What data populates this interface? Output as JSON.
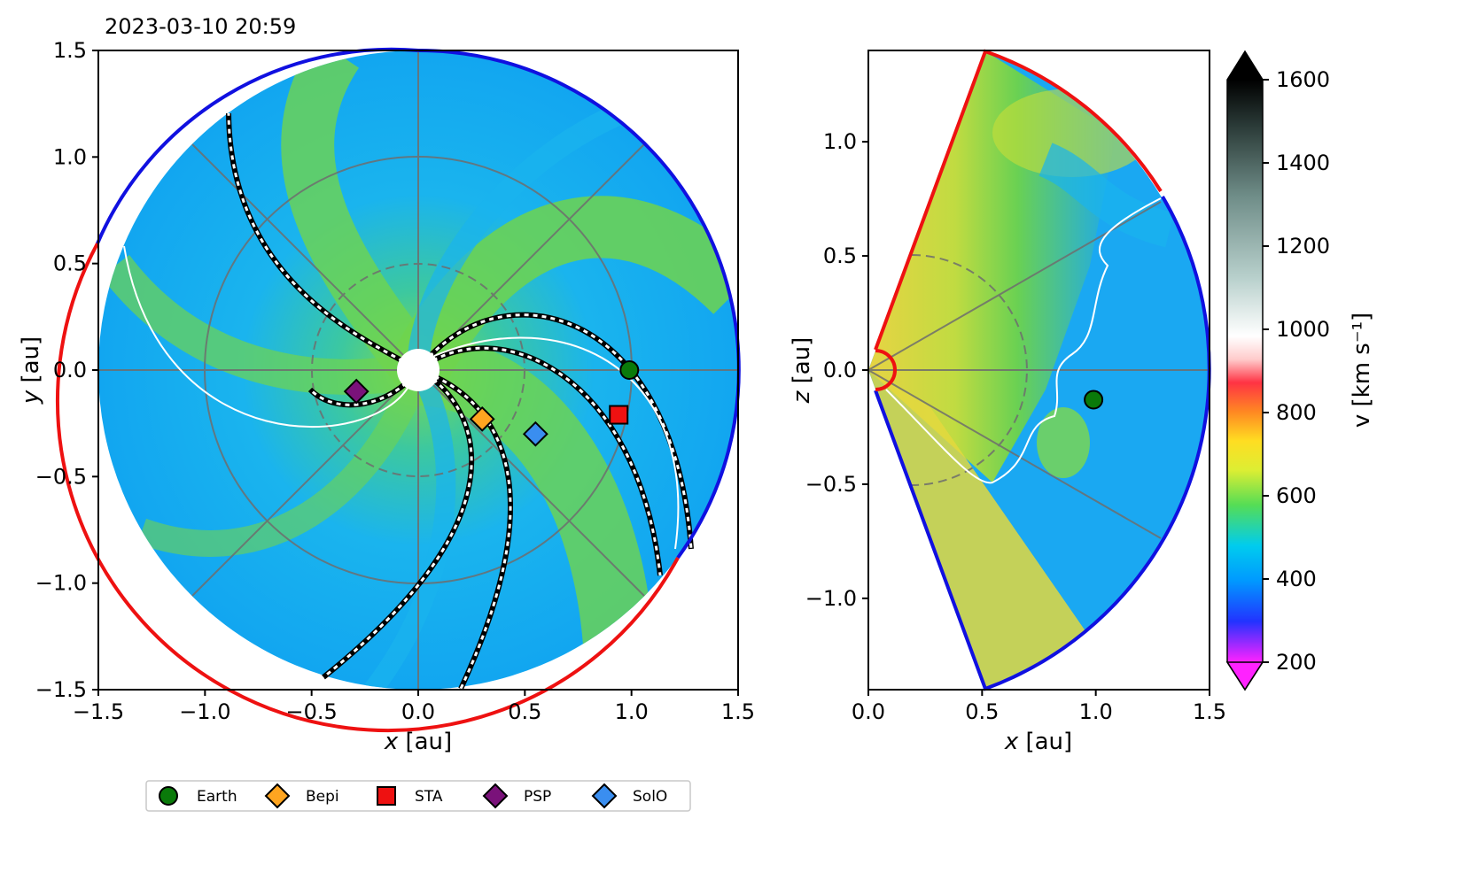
{
  "chart_data": [
    {
      "type": "heatmap",
      "view": "ecliptic plane",
      "timestamp": "2023-03-10 20:59",
      "xlabel_var": "x",
      "xlabel_unit": " [au]",
      "ylabel_var": "y",
      "ylabel_unit": " [au]",
      "xlim": [
        -1.5,
        1.5
      ],
      "ylim": [
        -1.5,
        1.5
      ],
      "xticks": [
        "−1.5",
        "−1.0",
        "−0.5",
        "0.0",
        "0.5",
        "1.0",
        "1.5"
      ],
      "yticks": [
        "−1.5",
        "−1.0",
        "−0.5",
        "0.0",
        "0.5",
        "1.0",
        "1.5"
      ],
      "bodies": [
        {
          "name": "Earth",
          "x": 0.99,
          "y": 0.0
        },
        {
          "name": "Bepi",
          "x": 0.3,
          "y": -0.23
        },
        {
          "name": "STA",
          "x": 0.94,
          "y": -0.21
        },
        {
          "name": "PSP",
          "x": -0.29,
          "y": -0.1
        },
        {
          "name": "SolO",
          "x": 0.55,
          "y": -0.3
        }
      ]
    },
    {
      "type": "heatmap",
      "view": "meridional plane",
      "xlabel_var": "x",
      "xlabel_unit": " [au]",
      "ylabel_var": "z",
      "ylabel_unit": " [au]",
      "xlim": [
        0.0,
        1.5
      ],
      "ylim": [
        -1.4,
        1.4
      ],
      "xticks": [
        "0.0",
        "0.5",
        "1.0",
        "1.5"
      ],
      "yticks": [
        "−1.0",
        "−0.5",
        "0.0",
        "0.5",
        "1.0"
      ],
      "bodies": [
        {
          "name": "Earth",
          "x": 0.99,
          "z": -0.13
        }
      ]
    }
  ],
  "colorbar": {
    "label": "v  [km s⁻¹]",
    "min": 200,
    "max": 1600,
    "ticks": [
      "200",
      "400",
      "600",
      "800",
      "1000",
      "1200",
      "1400",
      "1600"
    ]
  },
  "legend": [
    {
      "label": "Earth",
      "marker": "circle",
      "color": "#0a7a0a"
    },
    {
      "label": "Bepi",
      "marker": "diamond",
      "color": "#ffa520"
    },
    {
      "label": "STA",
      "marker": "square",
      "color": "#ee1111"
    },
    {
      "label": "PSP",
      "marker": "diamond",
      "color": "#7a127a"
    },
    {
      "label": "SolO",
      "marker": "diamond",
      "color": "#3a8ef0"
    }
  ]
}
